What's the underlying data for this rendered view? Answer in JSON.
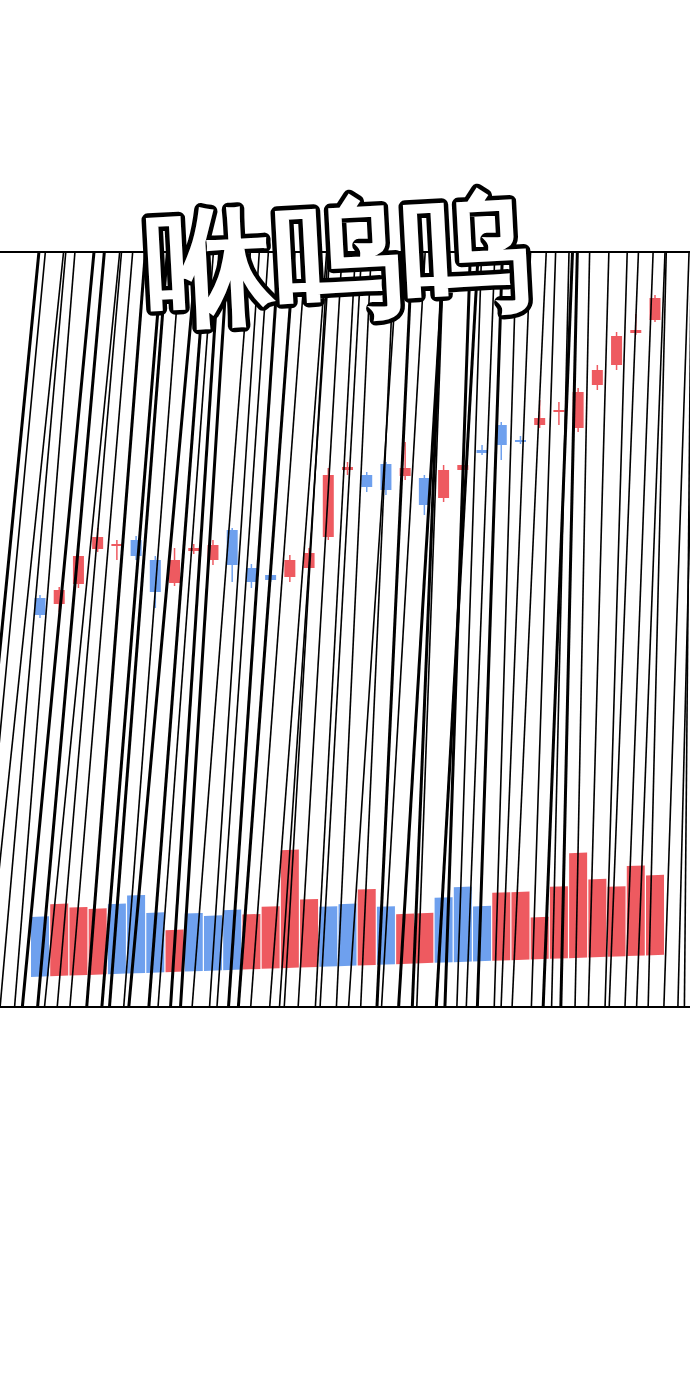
{
  "chart_data": {
    "type": "candlestick",
    "annotations": [
      "咻呜呜"
    ],
    "categories": [
      null,
      null,
      null,
      null,
      null,
      null,
      null,
      null,
      null,
      null,
      null,
      null,
      null,
      null,
      null,
      null,
      null,
      null,
      null,
      null,
      null,
      null,
      null,
      null,
      null,
      null,
      null,
      null,
      null,
      null,
      null,
      null,
      null
    ],
    "ylim": [
      0,
      360
    ],
    "y2lim": [
      0,
      130
    ],
    "tick_labels": false,
    "grid": false,
    "series": [
      {
        "type": "candlestick",
        "open": [
          42,
          36,
          56,
          91,
          94,
          100,
          80,
          57,
          89,
          80,
          110,
          72,
          65,
          63,
          72,
          103,
          170,
          165,
          176,
          164,
          162,
          142,
          170,
          190,
          215,
          200,
          215,
          228,
          212,
          255,
          275,
          307,
          320
        ],
        "close": [
          25,
          50,
          84,
          103,
          96,
          84,
          48,
          80,
          92,
          95,
          75,
          58,
          60,
          80,
          87,
          165,
          173,
          153,
          150,
          172,
          135,
          170,
          175,
          187,
          195,
          198,
          222,
          230,
          248,
          270,
          304,
          310,
          342
        ],
        "high": [
          45,
          53,
          90,
          112,
          100,
          104,
          84,
          92,
          96,
          100,
          112,
          76,
          68,
          85,
          92,
          172,
          178,
          168,
          178,
          198,
          165,
          175,
          178,
          195,
          218,
          204,
          240,
          238,
          252,
          275,
          308,
          326,
          345
        ],
        "low": [
          22,
          28,
          52,
          88,
          80,
          80,
          32,
          54,
          86,
          75,
          58,
          52,
          58,
          58,
          70,
          100,
          165,
          148,
          145,
          160,
          125,
          138,
          168,
          185,
          180,
          196,
          212,
          215,
          208,
          250,
          270,
          305,
          318
        ],
        "colors": [
          "#6ea0ee",
          "#ee5a60",
          "#ee5a60",
          "#ee5a60",
          "#ee5a60",
          "#6ea0ee",
          "#6ea0ee",
          "#ee5a60",
          "#ee5a60",
          "#ee5a60",
          "#6ea0ee",
          "#6ea0ee",
          "#6ea0ee",
          "#ee5a60",
          "#ee5a60",
          "#ee5a60",
          "#ee5a60",
          "#6ea0ee",
          "#6ea0ee",
          "#ee5a60",
          "#6ea0ee",
          "#ee5a60",
          "#ee5a60",
          "#6ea0ee",
          "#6ea0ee",
          "#6ea0ee",
          "#ee5a60",
          "#ee5a60",
          "#ee5a60",
          "#ee5a60",
          "#ee5a60",
          "#ee5a60",
          "#ee5a60"
        ]
      },
      {
        "type": "bar",
        "axis": "y2",
        "values": [
          60,
          72,
          68,
          66,
          70,
          78,
          60,
          42,
          58,
          55,
          60,
          55,
          62,
          118,
          68,
          60,
          62,
          76,
          58,
          50,
          50,
          65,
          75,
          55,
          68,
          68,
          42,
          72,
          105,
          78,
          70,
          90,
          80
        ],
        "colors": [
          "#6ea0ee",
          "#ee5a60",
          "#ee5a60",
          "#ee5a60",
          "#6ea0ee",
          "#6ea0ee",
          "#6ea0ee",
          "#ee5a60",
          "#6ea0ee",
          "#6ea0ee",
          "#6ea0ee",
          "#ee5a60",
          "#ee5a60",
          "#ee5a60",
          "#ee5a60",
          "#6ea0ee",
          "#6ea0ee",
          "#ee5a60",
          "#6ea0ee",
          "#ee5a60",
          "#ee5a60",
          "#6ea0ee",
          "#6ea0ee",
          "#6ea0ee",
          "#ee5a60",
          "#ee5a60",
          "#ee5a60",
          "#ee5a60",
          "#ee5a60",
          "#ee5a60",
          "#ee5a60",
          "#ee5a60",
          "#ee5a60"
        ]
      }
    ]
  }
}
